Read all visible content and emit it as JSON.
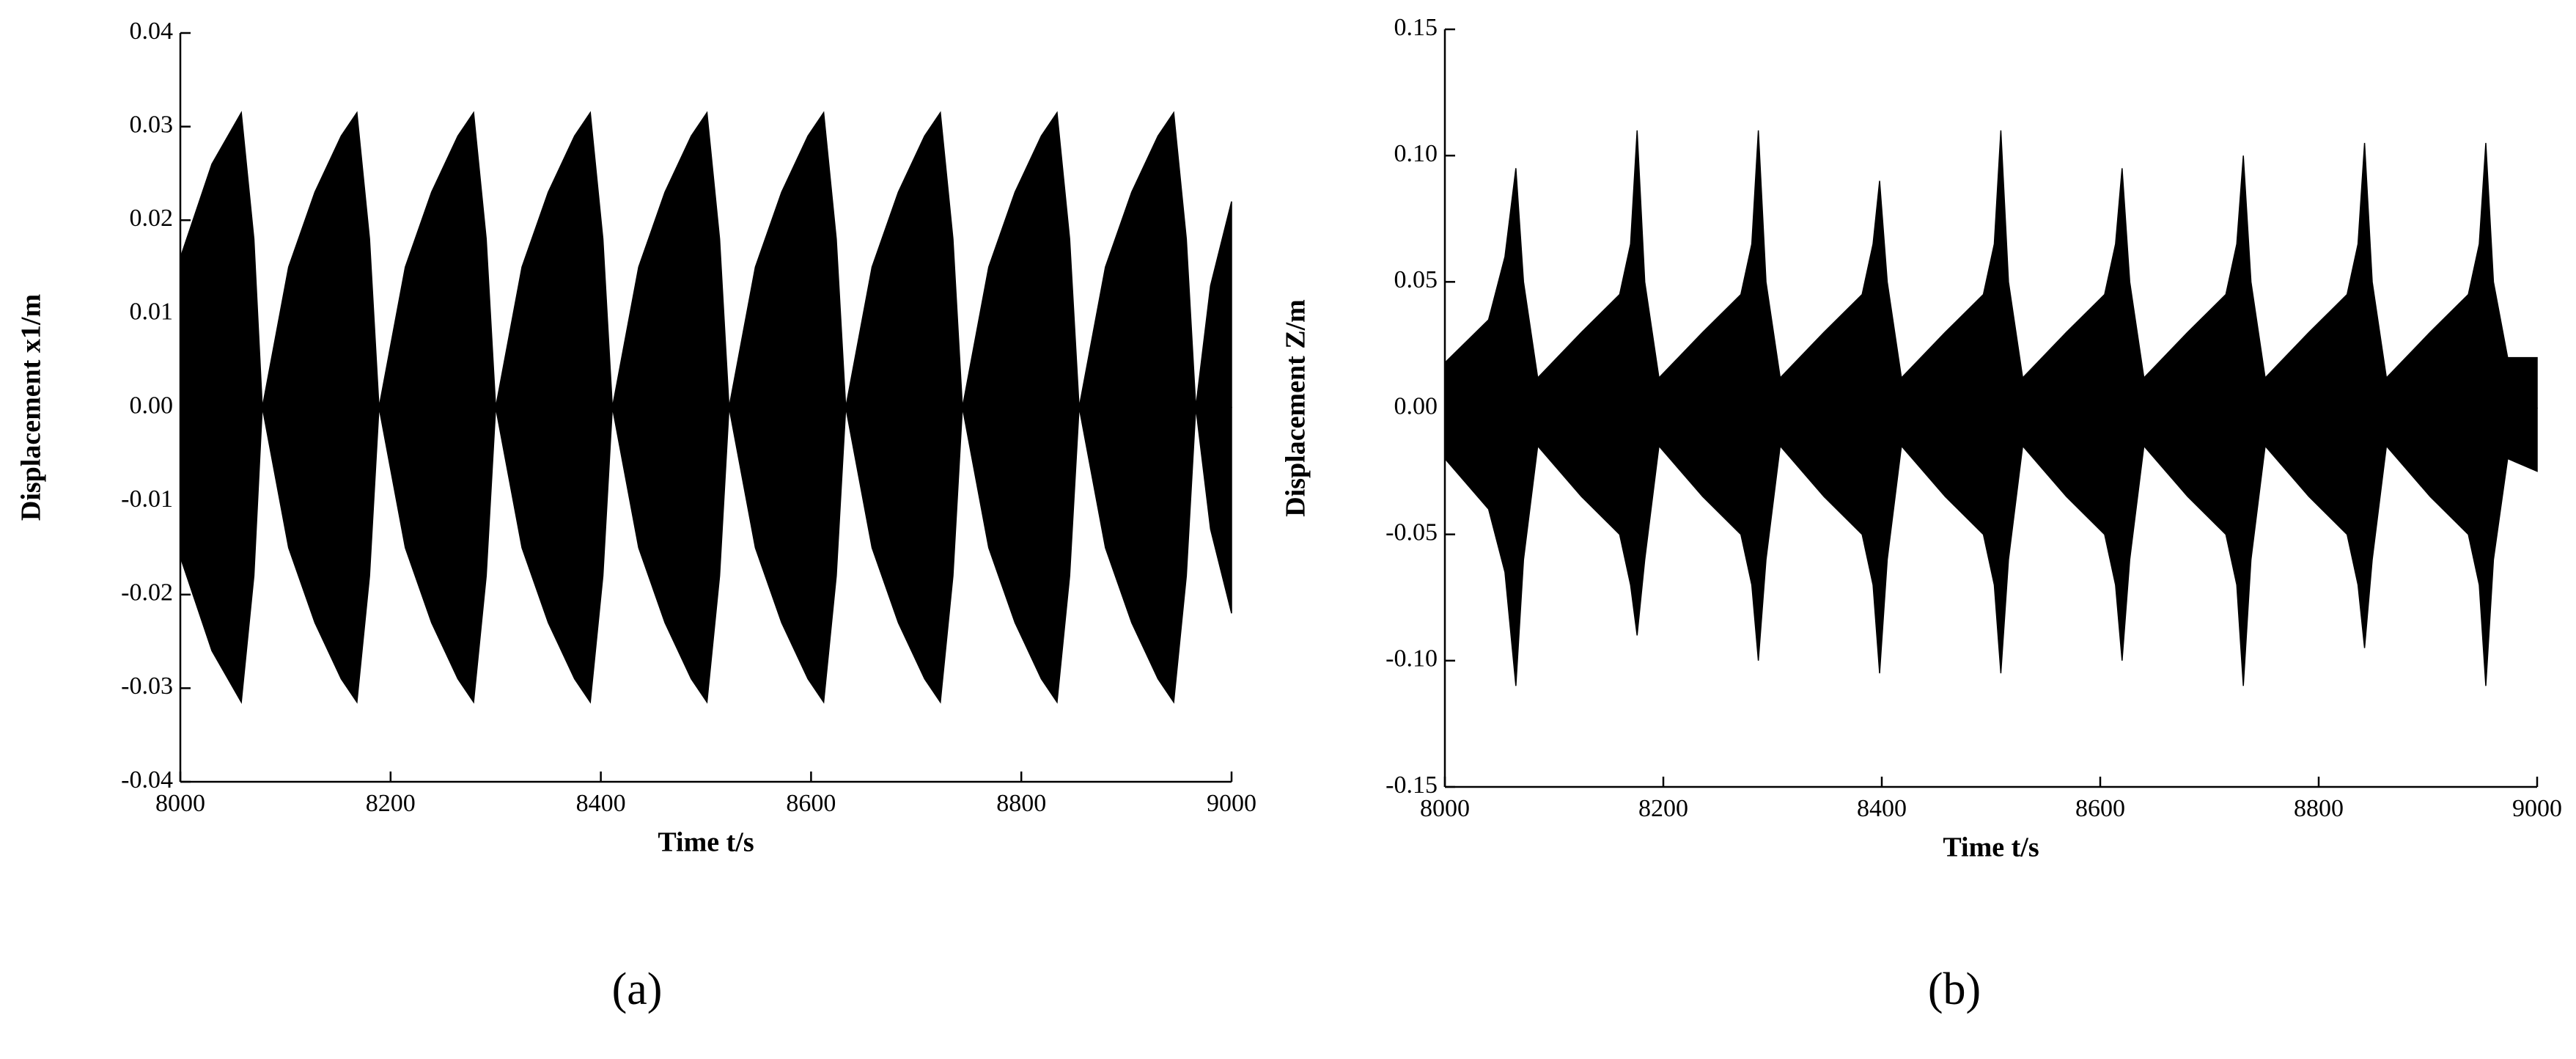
{
  "chart_data": [
    {
      "type": "area",
      "caption": "(a)",
      "xlabel": "Time t/s",
      "ylabel": "Displacement x1/m",
      "x": [
        8000,
        8030,
        8058,
        8070,
        8078,
        8103,
        8128,
        8153,
        8168,
        8180,
        8189,
        8214,
        8239,
        8264,
        8279,
        8291,
        8300,
        8325,
        8350,
        8375,
        8390,
        8402,
        8411,
        8436,
        8461,
        8486,
        8501,
        8513,
        8522,
        8547,
        8572,
        8597,
        8612,
        8624,
        8633,
        8658,
        8683,
        8708,
        8723,
        8735,
        8744,
        8769,
        8794,
        8819,
        8834,
        8846,
        8855,
        8880,
        8905,
        8930,
        8945,
        8957,
        8966,
        8980,
        9000
      ],
      "series": [
        {
          "color": "#000000",
          "values": [
            0.016,
            0.026,
            0.0315,
            0.018,
            0,
            0.015,
            0.023,
            0.029,
            0.0315,
            0.018,
            0,
            0.015,
            0.023,
            0.029,
            0.0315,
            0.018,
            0,
            0.015,
            0.023,
            0.029,
            0.0315,
            0.018,
            0,
            0.015,
            0.023,
            0.029,
            0.0315,
            0.018,
            0,
            0.015,
            0.023,
            0.029,
            0.0315,
            0.018,
            0,
            0.015,
            0.023,
            0.029,
            0.0315,
            0.018,
            0,
            0.015,
            0.023,
            0.029,
            0.0315,
            0.018,
            0,
            0.015,
            0.023,
            0.029,
            0.0315,
            0.018,
            0,
            0.013,
            0.022
          ]
        },
        {
          "color": "#000000",
          "values": [
            -0.016,
            -0.026,
            -0.0315,
            -0.018,
            0,
            -0.015,
            -0.023,
            -0.029,
            -0.0315,
            -0.018,
            0,
            -0.015,
            -0.023,
            -0.029,
            -0.0315,
            -0.018,
            0,
            -0.015,
            -0.023,
            -0.029,
            -0.0315,
            -0.018,
            0,
            -0.015,
            -0.023,
            -0.029,
            -0.0315,
            -0.018,
            0,
            -0.015,
            -0.023,
            -0.029,
            -0.0315,
            -0.018,
            0,
            -0.015,
            -0.023,
            -0.029,
            -0.0315,
            -0.018,
            0,
            -0.015,
            -0.023,
            -0.029,
            -0.0315,
            -0.018,
            0,
            -0.015,
            -0.023,
            -0.029,
            -0.0315,
            -0.018,
            0,
            -0.013,
            -0.022
          ]
        }
      ],
      "xlim": [
        8000,
        9000
      ],
      "xticks": [
        8000,
        8200,
        8400,
        8600,
        8800,
        9000
      ],
      "ylim": [
        -0.04,
        0.04
      ],
      "yticks": [
        -0.04,
        -0.03,
        -0.02,
        -0.01,
        {
          "value": 0,
          "label": "0.00"
        },
        0.01,
        0.02,
        0.03,
        0.04
      ]
    },
    {
      "type": "area",
      "caption": "(b)",
      "xlabel": "Time t/s",
      "ylabel": "Displacement Z/m",
      "x": [
        8000,
        8040,
        8055,
        8065,
        8072,
        8085,
        8125,
        8160,
        8170,
        8176,
        8183,
        8196,
        8236,
        8271,
        8281,
        8287,
        8294,
        8307,
        8347,
        8382,
        8392,
        8398,
        8405,
        8418,
        8458,
        8493,
        8503,
        8509,
        8516,
        8529,
        8569,
        8604,
        8614,
        8620,
        8627,
        8640,
        8680,
        8715,
        8725,
        8731,
        8738,
        8751,
        8791,
        8826,
        8836,
        8842,
        8849,
        8862,
        8902,
        8937,
        8947,
        8953,
        8960,
        8973,
        9000
      ],
      "series": [
        {
          "color": "#000000",
          "values": [
            0.018,
            0.035,
            0.06,
            0.095,
            0.05,
            0.012,
            0.03,
            0.045,
            0.065,
            0.11,
            0.05,
            0.012,
            0.03,
            0.045,
            0.065,
            0.11,
            0.05,
            0.012,
            0.03,
            0.045,
            0.065,
            0.09,
            0.05,
            0.012,
            0.03,
            0.045,
            0.065,
            0.11,
            0.05,
            0.012,
            0.03,
            0.045,
            0.065,
            0.095,
            0.05,
            0.012,
            0.03,
            0.045,
            0.065,
            0.1,
            0.05,
            0.012,
            0.03,
            0.045,
            0.065,
            0.105,
            0.05,
            0.012,
            0.03,
            0.045,
            0.065,
            0.105,
            0.05,
            0.02,
            0.02
          ]
        },
        {
          "color": "#000000",
          "values": [
            -0.02,
            -0.04,
            -0.065,
            -0.11,
            -0.06,
            -0.015,
            -0.035,
            -0.05,
            -0.07,
            -0.09,
            -0.06,
            -0.015,
            -0.035,
            -0.05,
            -0.07,
            -0.1,
            -0.06,
            -0.015,
            -0.035,
            -0.05,
            -0.07,
            -0.105,
            -0.06,
            -0.015,
            -0.035,
            -0.05,
            -0.07,
            -0.105,
            -0.06,
            -0.015,
            -0.035,
            -0.05,
            -0.07,
            -0.1,
            -0.06,
            -0.015,
            -0.035,
            -0.05,
            -0.07,
            -0.11,
            -0.06,
            -0.015,
            -0.035,
            -0.05,
            -0.07,
            -0.095,
            -0.06,
            -0.015,
            -0.035,
            -0.05,
            -0.07,
            -0.11,
            -0.06,
            -0.02,
            -0.025
          ]
        }
      ],
      "xlim": [
        8000,
        9000
      ],
      "xticks": [
        8000,
        8200,
        8400,
        8600,
        8800,
        9000
      ],
      "ylim": [
        -0.15,
        0.15
      ],
      "yticks": [
        -0.15,
        {
          "value": -0.1,
          "label": "-0.10"
        },
        -0.05,
        {
          "value": 0,
          "label": "0.00"
        },
        0.05,
        {
          "value": 0.1,
          "label": "0.10"
        },
        0.15
      ]
    }
  ]
}
